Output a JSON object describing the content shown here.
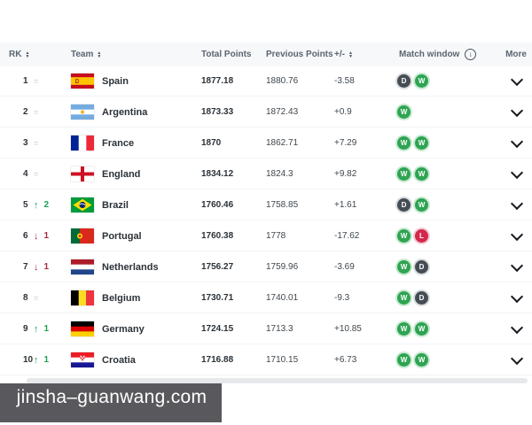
{
  "table": {
    "columns": [
      {
        "key": "rk",
        "label": "RK",
        "sortable": true
      },
      {
        "key": "team",
        "label": "Team",
        "sortable": true
      },
      {
        "key": "total",
        "label": "Total Points",
        "sortable": false
      },
      {
        "key": "prev",
        "label": "Previous Points",
        "sortable": false
      },
      {
        "key": "diff",
        "label": "+/-",
        "sortable": true
      },
      {
        "key": "match",
        "label": "Match window",
        "info_icon": true
      },
      {
        "key": "more",
        "label": "More",
        "sortable": false
      }
    ],
    "rows": [
      {
        "rank": "1",
        "change": "none",
        "change_n": "",
        "team": "Spain",
        "flag": "es",
        "total": "1877.18",
        "prev": "1880.76",
        "diff": "-3.58",
        "matches": [
          "D",
          "W"
        ]
      },
      {
        "rank": "2",
        "change": "none",
        "change_n": "",
        "team": "Argentina",
        "flag": "ar",
        "total": "1873.33",
        "prev": "1872.43",
        "diff": "+0.9",
        "matches": [
          "W"
        ]
      },
      {
        "rank": "3",
        "change": "none",
        "change_n": "",
        "team": "France",
        "flag": "fr",
        "total": "1870",
        "prev": "1862.71",
        "diff": "+7.29",
        "matches": [
          "W",
          "W"
        ]
      },
      {
        "rank": "4",
        "change": "none",
        "change_n": "",
        "team": "England",
        "flag": "en",
        "total": "1834.12",
        "prev": "1824.3",
        "diff": "+9.82",
        "matches": [
          "W",
          "W"
        ]
      },
      {
        "rank": "5",
        "change": "up",
        "change_n": "2",
        "team": "Brazil",
        "flag": "br",
        "total": "1760.46",
        "prev": "1758.85",
        "diff": "+1.61",
        "matches": [
          "D",
          "W"
        ]
      },
      {
        "rank": "6",
        "change": "down",
        "change_n": "1",
        "team": "Portugal",
        "flag": "pt",
        "total": "1760.38",
        "prev": "1778",
        "diff": "-17.62",
        "matches": [
          "W",
          "L"
        ]
      },
      {
        "rank": "7",
        "change": "down",
        "change_n": "1",
        "team": "Netherlands",
        "flag": "nl",
        "total": "1756.27",
        "prev": "1759.96",
        "diff": "-3.69",
        "matches": [
          "W",
          "D"
        ]
      },
      {
        "rank": "8",
        "change": "none",
        "change_n": "",
        "team": "Belgium",
        "flag": "be",
        "total": "1730.71",
        "prev": "1740.01",
        "diff": "-9.3",
        "matches": [
          "W",
          "D"
        ]
      },
      {
        "rank": "9",
        "change": "up",
        "change_n": "1",
        "team": "Germany",
        "flag": "de",
        "total": "1724.15",
        "prev": "1713.3",
        "diff": "+10.85",
        "matches": [
          "W",
          "W"
        ]
      },
      {
        "rank": "10",
        "change": "up",
        "change_n": "1",
        "team": "Croatia",
        "flag": "hr",
        "total": "1716.88",
        "prev": "1710.15",
        "diff": "+6.73",
        "matches": [
          "W",
          "W"
        ]
      }
    ]
  },
  "badge_colors": {
    "W": "#2ea452",
    "D": "#454d54",
    "L": "#d2294b"
  },
  "icons": {
    "sort": "sort-arrows-icon",
    "info": "info-icon",
    "info_glyph": "i",
    "chevron": "chevron-down-icon",
    "rank_up": "↑",
    "rank_down": "↓",
    "no_change": "="
  },
  "colors": {
    "header_bg": "#f7f8fa",
    "row_bg": "#ffffff",
    "rank_up": "#1d9e50",
    "rank_down": "#a8293f",
    "watermark_bg": "#5d6ba3",
    "watermark_shadow": "#59595d"
  },
  "watermark": {
    "text": "jinsha–guanwang.com"
  }
}
